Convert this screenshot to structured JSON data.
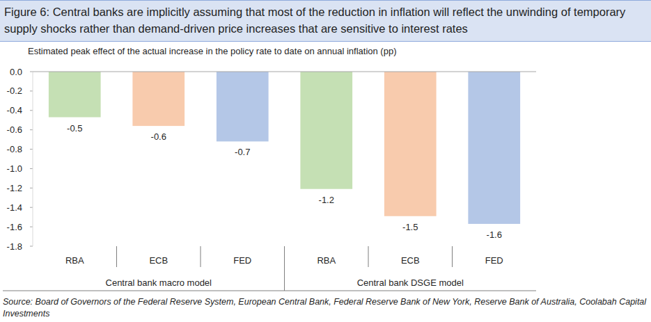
{
  "chart_data": {
    "type": "bar",
    "title": "Figure 6: Central banks are implicitly assuming that most of the reduction in inflation will reflect the unwinding of temporary supply shocks rather than demand-driven price increases that are sensitive to interest rates",
    "subtitle": "Estimated peak effect of the actual increase in the policy rate to date on annual inflation (pp)",
    "source": "Source:  Board of Governors of the Federal Reserve System, European Central Bank, Federal Reserve Bank of New York, Reserve Bank of Australia, Coolabah Capital Investments",
    "categories": [
      "RBA",
      "ECB",
      "FED",
      "RBA",
      "ECB",
      "FED"
    ],
    "groups": [
      "Central bank macro model",
      "Central bank DSGE model"
    ],
    "values": [
      -0.47,
      -0.56,
      -0.72,
      -1.21,
      -1.49,
      -1.57
    ],
    "value_labels": [
      "-0.5",
      "-0.6",
      "-0.7",
      "-1.2",
      "-1.5",
      "-1.6"
    ],
    "colors": [
      "#c5e0b4",
      "#f8cbad",
      "#b4c7e7",
      "#c5e0b4",
      "#f8cbad",
      "#b4c7e7"
    ],
    "ylim": [
      -1.8,
      0
    ],
    "yticks": [
      {
        "value": 0,
        "label": "0.0"
      },
      -0.2,
      -0.4,
      -0.6,
      -0.8,
      {
        "value": -1,
        "label": "-1.0"
      },
      -1.2,
      -1.4,
      -1.6,
      -1.8
    ],
    "data_labels": true,
    "grid": false
  }
}
